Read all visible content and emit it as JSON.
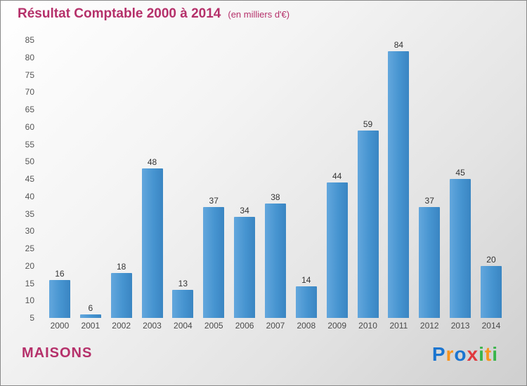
{
  "header": {
    "title": "Résultat Comptable 2000 à 2014",
    "subtitle": "(en milliers d'€)"
  },
  "chart_data": {
    "type": "bar",
    "title": "Résultat Comptable 2000 à 2014",
    "subtitle": "(en milliers d'€)",
    "categories": [
      "2000",
      "2001",
      "2002",
      "2003",
      "2004",
      "2005",
      "2006",
      "2007",
      "2008",
      "2009",
      "2010",
      "2011",
      "2012",
      "2013",
      "2014"
    ],
    "values": [
      16,
      6,
      18,
      48,
      13,
      37,
      34,
      38,
      14,
      44,
      59,
      84,
      37,
      45,
      20
    ],
    "ylim": [
      5,
      85
    ],
    "ytick_step": 5,
    "grid": false,
    "bar_color": "#4694d0",
    "value_label_color": "#333333",
    "axis_label_color": "#555555",
    "title_color": "#b5306a"
  },
  "footer": {
    "company": "MAISONS",
    "brand_letters": [
      {
        "ch": "P",
        "color": "#1b75d0"
      },
      {
        "ch": "r",
        "color": "#f7941e"
      },
      {
        "ch": "o",
        "color": "#1b75d0"
      },
      {
        "ch": "x",
        "color": "#e03a3e"
      },
      {
        "ch": "i",
        "color": "#39b54a"
      },
      {
        "ch": "t",
        "color": "#f7941e"
      },
      {
        "ch": "i",
        "color": "#39b54a"
      }
    ]
  }
}
